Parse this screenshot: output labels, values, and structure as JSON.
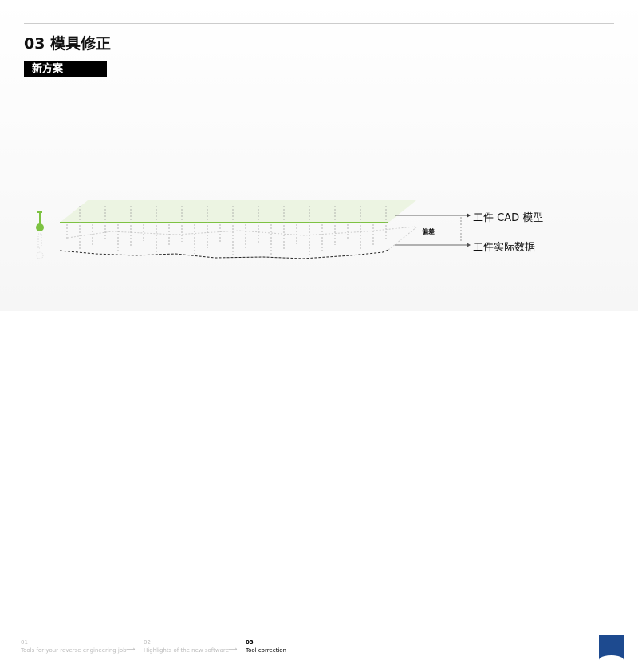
{
  "header": {
    "title": "03 模具修正",
    "badge": "新方案"
  },
  "diagram": {
    "cad_label": "工件 CAD 模型",
    "actual_label": "工件实际数据",
    "deviation_label": "偏差",
    "accent": "#7dc242"
  },
  "footer": {
    "steps": [
      {
        "num": "01",
        "label": "Tools for your reverse engineering job",
        "active": false
      },
      {
        "num": "02",
        "label": "Highlights of the new software",
        "active": false
      },
      {
        "num": "03",
        "label": "Tool correction",
        "active": true
      }
    ],
    "arrow": "⟶",
    "logo": "ZEISS",
    "brand_color": "#1d4a8f"
  }
}
